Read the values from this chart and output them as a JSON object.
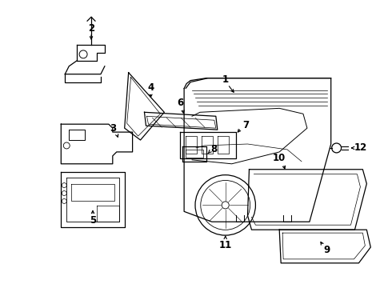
{
  "background_color": "#ffffff",
  "line_color": "#000000",
  "figure_width": 4.9,
  "figure_height": 3.6,
  "dpi": 100,
  "label_fontsize": 8.5,
  "lw": 0.9
}
